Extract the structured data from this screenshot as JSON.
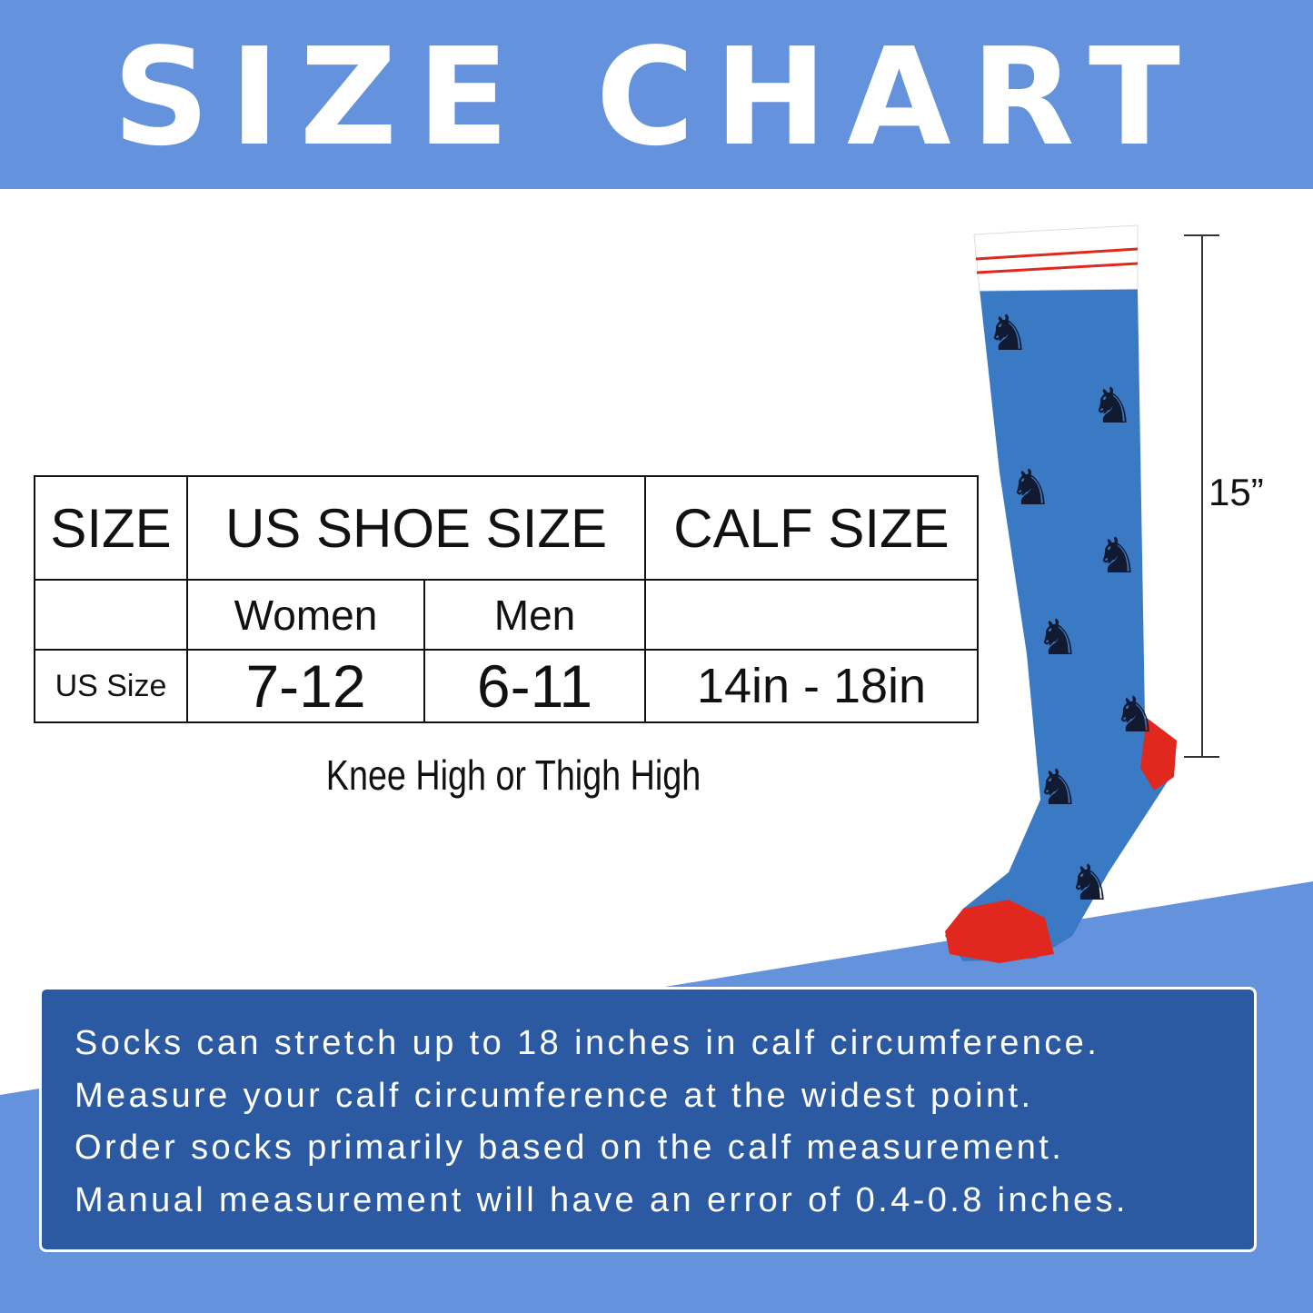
{
  "title": "SIZE CHART",
  "table": {
    "headers": [
      "SIZE",
      "US SHOE SIZE",
      "CALF SIZE"
    ],
    "subheaders": [
      "Women",
      "Men"
    ],
    "row": {
      "label": "US Size",
      "women": "7-12",
      "men": "6-11",
      "calf": "14in - 18in"
    }
  },
  "caption": "Knee High or Thigh High",
  "dimension": "15”",
  "notes": [
    "Socks can stretch up to 18 inches in calf circumference.",
    "Measure your calf circumference at the widest point.",
    "Order socks primarily based on the calf measurement.",
    "Manual measurement will have an error of 0.4-0.8 inches."
  ],
  "colors": {
    "banner": "#6592dc",
    "note_box": "#2b5aa3",
    "sock": "#3a7ac4",
    "accent_red": "#e0281e"
  }
}
